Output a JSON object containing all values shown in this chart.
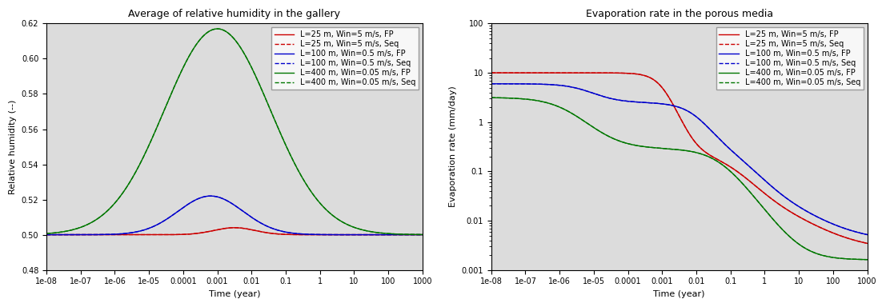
{
  "left_title": "Average of relative humidity in the gallery",
  "right_title": "Evaporation rate in the porous media",
  "left_ylabel": "Relative humidity (--)",
  "right_ylabel": "Evaporation rate (mm/day)",
  "xlabel": "Time (year)",
  "left_ylim": [
    0.48,
    0.62
  ],
  "left_yticks": [
    0.48,
    0.5,
    0.52,
    0.54,
    0.56,
    0.58,
    0.6,
    0.62
  ],
  "right_ylim": [
    0.001,
    100
  ],
  "xlim_left": [
    1e-08,
    1000
  ],
  "xlim_right": [
    1e-08,
    1000
  ],
  "legend_labels": [
    "L=25 m, Win=5 m/s, FP",
    "L=25 m, Win=5 m/s, Seq",
    "L=100 m, Win=0.5 m/s, FP",
    "L=100 m, Win=0.5 m/s, Seq",
    "L=400 m, Win=0.05 m/s, FP",
    "L=400 m, Win=0.05 m/s, Seq"
  ],
  "colors": [
    "#cc0000",
    "#cc0000",
    "#0000cc",
    "#0000cc",
    "#007700",
    "#007700"
  ],
  "linestyles": [
    "-",
    "--",
    "-",
    "--",
    "-",
    "--"
  ],
  "bg_color": "#dcdcdc",
  "font_size": 8,
  "title_font_size": 9,
  "tick_font_size": 7
}
